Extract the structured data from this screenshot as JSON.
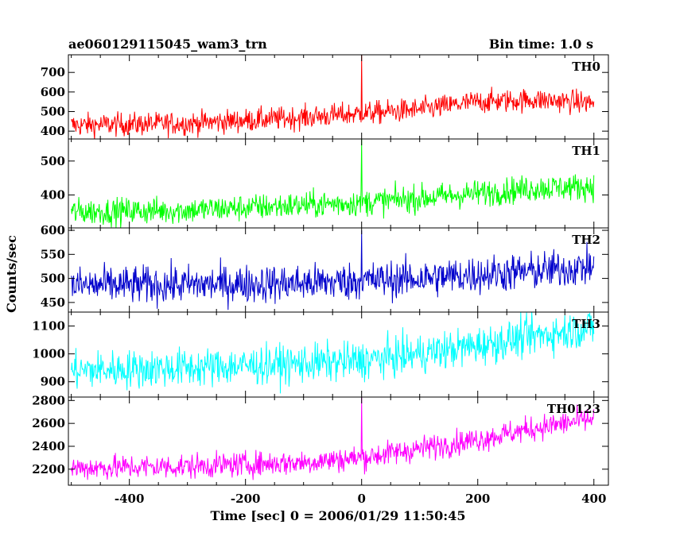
{
  "header": {
    "title": "ae060129115045_wam3_trn",
    "bin_time": "Bin time: 1.0 s"
  },
  "chart_data": {
    "type": "line",
    "ylabel": "Counts/sec",
    "xlabel": "Time [sec] 0 = 2006/01/29 11:50:45",
    "xlim": [
      -505,
      425
    ],
    "xticks": [
      -400,
      -200,
      0,
      200,
      400
    ],
    "grid": false,
    "panels": [
      {
        "name": "TH0",
        "color": "#ff0000",
        "ylim": [
          360,
          790
        ],
        "yticks": [
          400,
          500,
          600,
          700
        ],
        "trend": [
          [
            -500,
            430
          ],
          [
            -300,
            440
          ],
          [
            -100,
            470
          ],
          [
            0,
            490
          ],
          [
            100,
            510
          ],
          [
            200,
            550
          ],
          [
            300,
            560
          ],
          [
            400,
            545
          ]
        ],
        "noise_sd": 30,
        "spikes": [
          {
            "x": 0,
            "value": 790
          }
        ]
      },
      {
        "name": "TH1",
        "color": "#00ff00",
        "ylim": [
          303,
          565
        ],
        "yticks": [
          400,
          500
        ],
        "trend": [
          [
            -500,
            350
          ],
          [
            -300,
            355
          ],
          [
            -100,
            370
          ],
          [
            0,
            378
          ],
          [
            100,
            390
          ],
          [
            200,
            405
          ],
          [
            300,
            420
          ],
          [
            400,
            425
          ]
        ],
        "noise_sd": 20,
        "spikes": [
          {
            "x": 0,
            "value": 565
          }
        ]
      },
      {
        "name": "TH2",
        "color": "#0000cc",
        "ylim": [
          430,
          605
        ],
        "yticks": [
          450,
          500,
          550,
          600
        ],
        "trend": [
          [
            -500,
            485
          ],
          [
            -300,
            487
          ],
          [
            -100,
            490
          ],
          [
            0,
            495
          ],
          [
            100,
            500
          ],
          [
            200,
            508
          ],
          [
            300,
            515
          ],
          [
            400,
            525
          ]
        ],
        "noise_sd": 20,
        "spikes": [
          {
            "x": 0,
            "value": 600
          }
        ]
      },
      {
        "name": "TH3",
        "color": "#00ffff",
        "ylim": [
          845,
          1150
        ],
        "yticks": [
          900,
          1000,
          1100
        ],
        "trend": [
          [
            -500,
            940
          ],
          [
            -300,
            950
          ],
          [
            -100,
            965
          ],
          [
            0,
            975
          ],
          [
            100,
            1000
          ],
          [
            200,
            1030
          ],
          [
            300,
            1065
          ],
          [
            400,
            1095
          ]
        ],
        "noise_sd": 35,
        "spikes": []
      },
      {
        "name": "TH0123",
        "color": "#ff00ff",
        "ylim": [
          2060,
          2830
        ],
        "yticks": [
          2200,
          2400,
          2600,
          2800
        ],
        "trend": [
          [
            -500,
            2210
          ],
          [
            -300,
            2225
          ],
          [
            -100,
            2260
          ],
          [
            0,
            2300
          ],
          [
            100,
            2380
          ],
          [
            200,
            2460
          ],
          [
            300,
            2560
          ],
          [
            400,
            2640
          ]
        ],
        "noise_sd": 55,
        "spikes": [
          {
            "x": 0,
            "value": 2830
          }
        ]
      }
    ]
  }
}
